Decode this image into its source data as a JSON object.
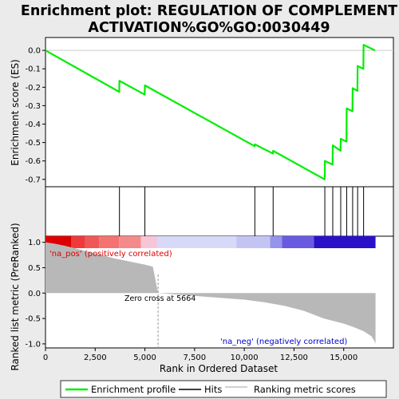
{
  "chart_data": {
    "type": "line",
    "title": "Enrichment plot: REGULATION OF COMPLEMENT ACTIVATION%GO%GO:0030449",
    "title_lines": [
      "Enrichment plot: REGULATION OF COMPLEMENT",
      "ACTIVATION%GO%GO:0030449"
    ],
    "xlabel": "Rank in Ordered Dataset",
    "ylabel_top": "Enrichment score (ES)",
    "ylabel_bottom": "Ranked list metric (PreRanked)",
    "xlim": [
      0,
      17500
    ],
    "x_ticks": [
      0,
      2500,
      5000,
      7500,
      10000,
      12500,
      15000
    ],
    "x_tick_labels": [
      "0",
      "2,500",
      "5,000",
      "7,500",
      "10,000",
      "12,500",
      "15,000"
    ],
    "es_ylim": [
      -0.74,
      0.07
    ],
    "es_ticks": [
      0.0,
      -0.1,
      -0.2,
      -0.3,
      -0.4,
      -0.5,
      -0.6,
      -0.7
    ],
    "es_tick_labels": [
      "0.0",
      "-0.1",
      "-0.2",
      "-0.3",
      "-0.4",
      "-0.5",
      "-0.6",
      "-0.7"
    ],
    "metric_ylim": [
      -1.08,
      1.12
    ],
    "metric_ticks": [
      1.0,
      0.5,
      0.0,
      -0.5,
      -1.0
    ],
    "metric_tick_labels": [
      "1.0",
      "0.5",
      "0.0",
      "-0.5",
      "-1.0"
    ],
    "n_genes": 16600,
    "zero_cross": 5664,
    "zero_cross_label": "Zero cross at 5664",
    "pos_label": "'na_pos' (positively correlated)",
    "neg_label": "'na_neg' (negatively correlated)",
    "hits": [
      3720,
      5000,
      10530,
      11450,
      14050,
      14450,
      14850,
      15150,
      15450,
      15700,
      16000
    ],
    "series": [
      {
        "name": "Enrichment profile",
        "color": "#00ee00",
        "points": [
          [
            0,
            0.0
          ],
          [
            3710,
            -0.225
          ],
          [
            3720,
            -0.165
          ],
          [
            4990,
            -0.24
          ],
          [
            5000,
            -0.19
          ],
          [
            10520,
            -0.52
          ],
          [
            10530,
            -0.51
          ],
          [
            11440,
            -0.56
          ],
          [
            11450,
            -0.545
          ],
          [
            14040,
            -0.7
          ],
          [
            14050,
            -0.665
          ],
          [
            14050,
            -0.6
          ],
          [
            14440,
            -0.62
          ],
          [
            14450,
            -0.515
          ],
          [
            14840,
            -0.545
          ],
          [
            14850,
            -0.48
          ],
          [
            15140,
            -0.495
          ],
          [
            15150,
            -0.315
          ],
          [
            15440,
            -0.33
          ],
          [
            15450,
            -0.205
          ],
          [
            15690,
            -0.22
          ],
          [
            15700,
            -0.085
          ],
          [
            15990,
            -0.1
          ],
          [
            16000,
            0.03
          ],
          [
            16580,
            0.0
          ]
        ]
      }
    ],
    "metric_profile": [
      [
        0,
        1.0
      ],
      [
        500,
        0.97
      ],
      [
        1000,
        0.93
      ],
      [
        1500,
        0.88
      ],
      [
        2000,
        0.83
      ],
      [
        2500,
        0.78
      ],
      [
        3000,
        0.73
      ],
      [
        3500,
        0.68
      ],
      [
        4000,
        0.64
      ],
      [
        4500,
        0.6
      ],
      [
        5000,
        0.56
      ],
      [
        5400,
        0.52
      ],
      [
        5664,
        0.0
      ],
      [
        6000,
        -0.01
      ],
      [
        7000,
        -0.04
      ],
      [
        8000,
        -0.07
      ],
      [
        9000,
        -0.1
      ],
      [
        10000,
        -0.13
      ],
      [
        11000,
        -0.18
      ],
      [
        12000,
        -0.25
      ],
      [
        13000,
        -0.35
      ],
      [
        14000,
        -0.5
      ],
      [
        15000,
        -0.6
      ],
      [
        15500,
        -0.67
      ],
      [
        16000,
        -0.75
      ],
      [
        16400,
        -0.85
      ],
      [
        16550,
        -0.95
      ],
      [
        16600,
        -1.0
      ]
    ],
    "color_bar": [
      {
        "from": 0,
        "to": 1300,
        "color": "#dd0000"
      },
      {
        "from": 1300,
        "to": 2000,
        "color": "#ee3a3a"
      },
      {
        "from": 2000,
        "to": 2700,
        "color": "#f05858"
      },
      {
        "from": 2700,
        "to": 3700,
        "color": "#f47272"
      },
      {
        "from": 3700,
        "to": 4800,
        "color": "#f58a8a"
      },
      {
        "from": 4800,
        "to": 5600,
        "color": "#f8c4d8"
      },
      {
        "from": 5600,
        "to": 9600,
        "color": "#d8d8f8"
      },
      {
        "from": 9600,
        "to": 11300,
        "color": "#c4c4f4"
      },
      {
        "from": 11300,
        "to": 11900,
        "color": "#9494ec"
      },
      {
        "from": 11900,
        "to": 13500,
        "color": "#6a5ae2"
      },
      {
        "from": 13500,
        "to": 16600,
        "color": "#2a10c8"
      }
    ],
    "legend": [
      {
        "label": "Enrichment profile",
        "color": "#00ee00",
        "kind": "line"
      },
      {
        "label": "Hits",
        "color": "#000000",
        "kind": "line"
      },
      {
        "label": "Ranking metric scores",
        "color": "#c0c0c0",
        "kind": "line"
      }
    ]
  }
}
